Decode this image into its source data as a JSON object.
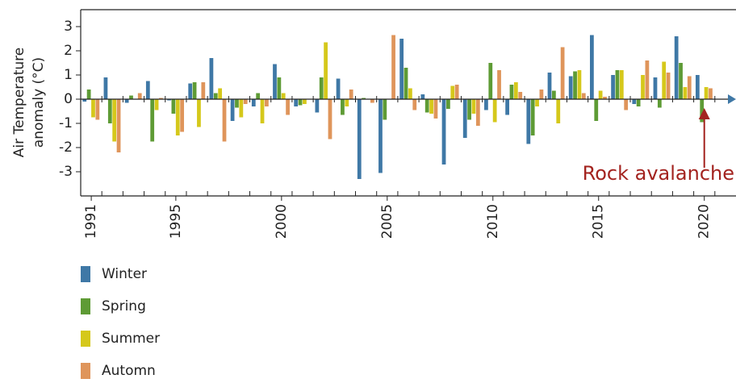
{
  "chart_data": {
    "type": "bar",
    "ylabel": [
      "Air Temperature",
      "anomaly (°C)"
    ],
    "x": [
      1991,
      1992,
      1993,
      1994,
      1995,
      1996,
      1997,
      1998,
      1999,
      2000,
      2001,
      2002,
      2003,
      2004,
      2005,
      2006,
      2007,
      2008,
      2009,
      2010,
      2011,
      2012,
      2013,
      2014,
      2015,
      2016,
      2017,
      2018,
      2019,
      2020,
      2021
    ],
    "xlim": [
      1990.5,
      2021.5
    ],
    "xticks": [
      1991,
      1995,
      2000,
      2005,
      2010,
      2015,
      2020
    ],
    "ylim": [
      -4,
      3.7
    ],
    "yticks": [
      -3,
      -2,
      -1,
      0,
      1,
      2,
      3
    ],
    "grid": false,
    "series": [
      {
        "name": "Winter",
        "color": "#3f78a6",
        "values": [
          -0.1,
          0.9,
          -0.15,
          0.75,
          -0.05,
          0.65,
          1.7,
          -0.9,
          -0.3,
          1.45,
          -0.3,
          -0.55,
          0.85,
          -3.3,
          -3.05,
          2.5,
          0.2,
          -2.7,
          -1.6,
          -0.45,
          -0.65,
          -1.85,
          1.1,
          0.95,
          2.65,
          1.0,
          -0.2,
          0.9,
          2.6,
          1.0,
          0
        ]
      },
      {
        "name": "Spring",
        "color": "#5e9b35",
        "values": [
          0.4,
          -1.0,
          0.15,
          -1.75,
          -0.6,
          0.7,
          0.25,
          -0.35,
          0.25,
          0.9,
          -0.25,
          0.9,
          -0.65,
          0.05,
          -0.85,
          1.3,
          -0.55,
          -0.4,
          -0.85,
          1.5,
          0.6,
          -1.5,
          0.35,
          1.15,
          -0.9,
          1.2,
          -0.3,
          -0.35,
          1.5,
          -0.95,
          0
        ]
      },
      {
        "name": "Summer",
        "color": "#d5c81b",
        "values": [
          -0.75,
          -1.75,
          0.0,
          -0.45,
          -1.5,
          -1.15,
          0.45,
          -0.75,
          -1.0,
          0.25,
          -0.2,
          2.35,
          -0.3,
          0.0,
          0.0,
          0.45,
          -0.6,
          0.55,
          -0.6,
          -0.95,
          0.7,
          -0.3,
          -1.0,
          1.2,
          0.35,
          1.2,
          1.0,
          1.55,
          0.5,
          0.5,
          0
        ]
      },
      {
        "name": "Automn",
        "color": "#df955b",
        "values": [
          -0.85,
          -2.2,
          0.25,
          0.05,
          -1.35,
          0.7,
          -1.75,
          -0.2,
          -0.3,
          -0.65,
          0.0,
          -1.65,
          0.4,
          -0.15,
          2.65,
          -0.45,
          -0.8,
          0.6,
          -1.1,
          1.2,
          0.3,
          0.4,
          2.15,
          0.25,
          0.1,
          -0.45,
          1.6,
          1.1,
          0.95,
          0.45,
          0
        ]
      }
    ],
    "annotations": [
      {
        "text": "Rock avalanche",
        "x": 2020,
        "color": "#a3231f"
      }
    ]
  }
}
